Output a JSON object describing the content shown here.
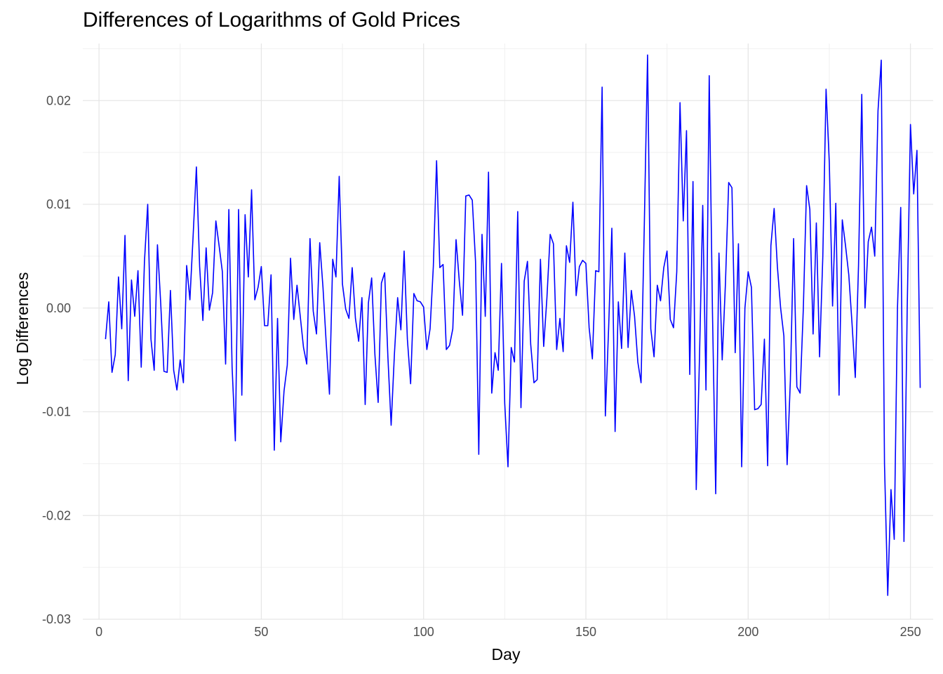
{
  "chart_data": {
    "type": "line",
    "title": "Differences of Logarithms of Gold Prices",
    "xlabel": "Day",
    "ylabel": "Log Differences",
    "xlim": [
      -5,
      257
    ],
    "ylim": [
      -0.03,
      0.0255
    ],
    "x_ticks": [
      0,
      50,
      100,
      150,
      200,
      250
    ],
    "x_tick_labels": [
      "0",
      "50",
      "100",
      "150",
      "200",
      "250"
    ],
    "y_ticks": [
      -0.03,
      -0.02,
      -0.01,
      0.0,
      0.01,
      0.02
    ],
    "y_tick_labels": [
      "-0.03",
      "-0.02",
      "-0.01",
      "0.00",
      "0.01",
      "0.02"
    ],
    "grid": true,
    "legend": "none",
    "line_color": "#0000ff",
    "series": [
      {
        "x_start": 2,
        "values": [
          -0.003,
          0.0006,
          -0.0062,
          -0.0045,
          0.003,
          -0.002,
          0.007,
          -0.007,
          0.0027,
          -0.0008,
          0.0036,
          -0.0057,
          0.0045,
          0.01,
          -0.003,
          -0.006,
          0.0061,
          0.0005,
          -0.0061,
          -0.0062,
          0.0017,
          -0.006,
          -0.0079,
          -0.005,
          -0.0072,
          0.0041,
          0.0008,
          0.007,
          0.0136,
          0.004,
          -0.0012,
          0.0058,
          -0.0002,
          0.0015,
          0.0084,
          0.006,
          0.0035,
          -0.0054,
          0.0095,
          -0.0057,
          -0.0128,
          0.0095,
          -0.0084,
          0.009,
          0.003,
          0.0114,
          0.0008,
          0.002,
          0.004,
          -0.0017,
          -0.0017,
          0.0032,
          -0.0137,
          -0.001,
          -0.0129,
          -0.008,
          -0.0055,
          0.0048,
          -0.0011,
          0.0022,
          -0.0008,
          -0.0038,
          -0.0054,
          0.0067,
          -0.0003,
          -0.0025,
          0.0063,
          0.002,
          -0.0034,
          -0.0083,
          0.0047,
          0.003,
          0.0127,
          0.0023,
          -0.0001,
          -0.001,
          0.0039,
          -0.001,
          -0.0032,
          0.001,
          -0.0093,
          0.0005,
          0.0029,
          -0.0045,
          -0.0091,
          0.0024,
          0.0034,
          -0.0047,
          -0.0113,
          -0.0045,
          0.001,
          -0.0021,
          0.0055,
          -0.003,
          -0.0073,
          0.0014,
          0.0007,
          0.0006,
          0.0001,
          -0.004,
          -0.002,
          0.004,
          0.0142,
          0.0039,
          0.0042,
          -0.004,
          -0.0036,
          -0.002,
          0.0066,
          0.0026,
          -0.0007,
          0.0108,
          0.0109,
          0.0104,
          0.0045,
          -0.0141,
          0.0071,
          -0.0008,
          0.0131,
          -0.0082,
          -0.0043,
          -0.006,
          0.0043,
          -0.0092,
          -0.0153,
          -0.0038,
          -0.0052,
          0.0093,
          -0.0096,
          0.0026,
          0.0045,
          -0.0035,
          -0.0072,
          -0.0069,
          0.0047,
          -0.0037,
          0.001,
          0.0071,
          0.0062,
          -0.004,
          -0.001,
          -0.0042,
          0.006,
          0.0044,
          0.0102,
          0.0012,
          0.004,
          0.0046,
          0.0043,
          -0.0019,
          -0.0049,
          0.0036,
          0.0035,
          0.0213,
          -0.0104,
          -0.002,
          0.0077,
          -0.0119,
          0.0006,
          -0.0039,
          0.0053,
          -0.0038,
          0.0017,
          -0.0008,
          -0.0052,
          -0.0072,
          0.008,
          0.0244,
          -0.002,
          -0.0047,
          0.0022,
          0.0007,
          0.0039,
          0.0055,
          -0.0011,
          -0.0019,
          0.0035,
          0.0198,
          0.0084,
          0.0171,
          -0.0064,
          0.0122,
          -0.0175,
          -0.0048,
          0.0099,
          -0.0079,
          0.0224,
          -0.0004,
          -0.0179,
          0.0053,
          -0.005,
          0.0024,
          0.0121,
          0.0116,
          -0.0043,
          0.0062,
          -0.0153,
          0.0,
          0.0035,
          0.002,
          -0.0098,
          -0.0097,
          -0.0093,
          -0.003,
          -0.0152,
          0.006,
          0.0096,
          0.004,
          0.0,
          -0.0027,
          -0.0151,
          -0.007,
          0.0067,
          -0.0076,
          -0.0082,
          0.0,
          0.0118,
          0.0095,
          -0.0025,
          0.0082,
          -0.0047,
          0.005,
          0.0211,
          0.014,
          0.0002,
          0.0101,
          -0.0084,
          0.0085,
          0.006,
          0.0032,
          -0.0015,
          -0.0067,
          0.0041,
          0.0206,
          0.0,
          0.0064,
          0.0078,
          0.005,
          0.019,
          0.0239,
          -0.015,
          -0.0277,
          -0.0175,
          -0.0223,
          0.0,
          0.0097,
          -0.0225,
          0.0,
          0.0177,
          0.011,
          0.0152,
          -0.0077
        ]
      }
    ]
  }
}
